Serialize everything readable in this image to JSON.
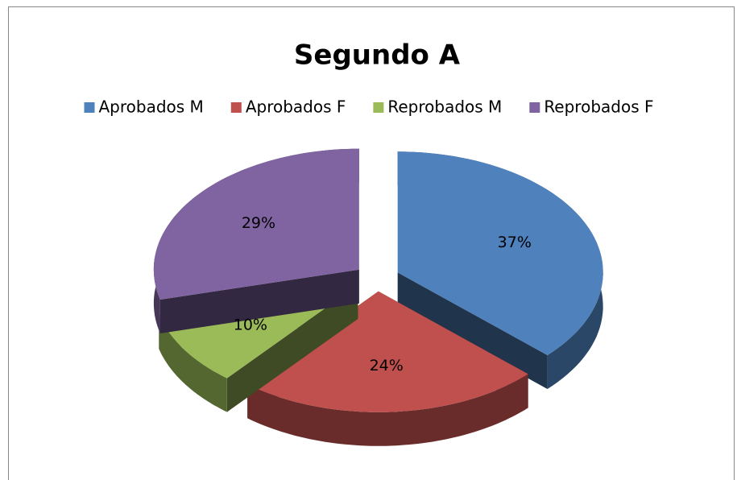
{
  "chart_data": {
    "type": "pie",
    "title": "Segundo A",
    "categories": [
      "Aprobados M",
      "Aprobados F",
      "Reprobados M",
      "Reprobados F"
    ],
    "values": [
      37,
      24,
      10,
      29
    ],
    "value_labels": [
      "37%",
      "24%",
      "10%",
      "29%"
    ],
    "colors": [
      "#4f81bd",
      "#c0504d",
      "#9bbb59",
      "#8064a2"
    ],
    "legend": "top"
  }
}
